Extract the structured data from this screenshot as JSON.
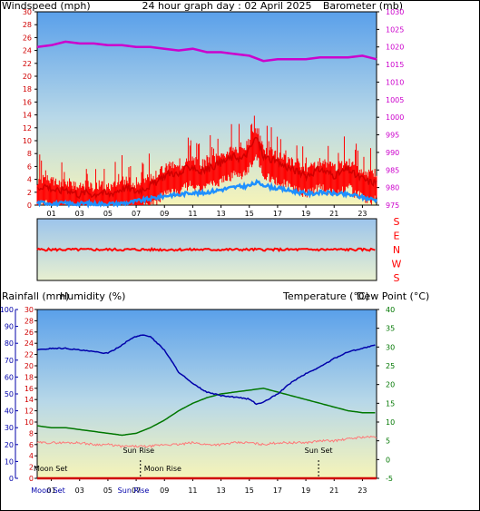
{
  "colors": {
    "windspeed": "#d00000",
    "gust": "#ff0000",
    "avg_wind": "#1e90ff",
    "barometer": "#cc00cc",
    "direction": "#ff0000",
    "rainfall": "#d00000",
    "humidity": "#0000aa",
    "temperature": "#007700",
    "dewpoint": "#ff7777",
    "temp_label": "#007700",
    "dew_label": "#ff6666",
    "border": "#000000"
  },
  "charts": {
    "top": {
      "title": "24 hour graph day : 02 April 2025",
      "left_label": "Windspeed (mph)",
      "right_label": "Barometer (mb)"
    },
    "direction": {
      "letters": [
        "S",
        "E",
        "N",
        "W",
        "S"
      ]
    },
    "bottom": {
      "left_label": "Rainfall (mm)",
      "left_label2": "Humidity (%)",
      "right_label": "Temperature (°C)",
      "right_label2": "Dew Point (°C)"
    }
  },
  "chart_data": [
    {
      "type": "line",
      "title": "24 hour graph day : 02 April 2025",
      "ylabel": "Windspeed (mph)",
      "y2label": "Barometer (mb)",
      "x_ticks": [
        "01",
        "03",
        "05",
        "07",
        "09",
        "11",
        "13",
        "15",
        "17",
        "19",
        "21",
        "23"
      ],
      "xlim": [
        0,
        24
      ],
      "ylim": [
        0,
        30
      ],
      "y_ticks": [
        0,
        2,
        4,
        6,
        8,
        10,
        12,
        14,
        16,
        18,
        20,
        22,
        24,
        26,
        28,
        30
      ],
      "y_tick_labels": [
        "0",
        "2",
        "4",
        "6",
        "8",
        "10",
        "12",
        "14",
        "16",
        "18",
        "20",
        "22",
        "24",
        "26",
        "28",
        "30"
      ],
      "y2lim": [
        975,
        1030
      ],
      "y2_ticks": [
        975,
        980,
        985,
        990,
        995,
        1000,
        1005,
        1010,
        1015,
        1020,
        1025,
        1030
      ],
      "y2_tick_labels": [
        "975",
        "980",
        "985",
        "990",
        "995",
        "1000",
        "1005",
        "1010",
        "1015",
        "1020",
        "1025",
        "1030"
      ],
      "series": [
        {
          "name": "Windspeed",
          "axis": "left",
          "x": [
            0,
            0.5,
            1,
            1.5,
            2,
            2.5,
            3,
            3.5,
            4,
            4.5,
            5,
            5.5,
            6,
            6.5,
            7,
            7.5,
            8,
            8.5,
            9,
            9.5,
            10,
            10.5,
            11,
            11.5,
            12,
            12.5,
            13,
            13.5,
            14,
            14.5,
            15,
            15.5,
            16,
            16.5,
            17,
            17.5,
            18,
            18.5,
            19,
            19.5,
            20,
            20.5,
            21,
            21.5,
            22,
            22.5,
            23,
            23.5,
            24
          ],
          "values": [
            3,
            3.5,
            3,
            2.5,
            3,
            2.5,
            2,
            2.5,
            2,
            2.5,
            2,
            2.5,
            3,
            3,
            2.5,
            3,
            3.5,
            4,
            5,
            5.5,
            5,
            6,
            6.5,
            5.5,
            6,
            6.5,
            7,
            7.5,
            8,
            7.5,
            9,
            11,
            8,
            7.5,
            7,
            6.5,
            6,
            5.5,
            5,
            5.5,
            6,
            5.5,
            5,
            5.5,
            6,
            5,
            4.5,
            4,
            4
          ]
        },
        {
          "name": "Average Windspeed",
          "axis": "left",
          "x": [
            0,
            0.5,
            1,
            1.5,
            2,
            2.5,
            3,
            3.5,
            4,
            4.5,
            5,
            5.5,
            6,
            6.5,
            7,
            7.5,
            8,
            8.5,
            9,
            9.5,
            10,
            10.5,
            11,
            11.5,
            12,
            12.5,
            13,
            13.5,
            14,
            14.5,
            15,
            15.5,
            16,
            16.5,
            17,
            17.5,
            18,
            18.5,
            19,
            19.5,
            20,
            20.5,
            21,
            21.5,
            22,
            22.5,
            23,
            23.5,
            24
          ],
          "values": [
            0.3,
            0.4,
            0.3,
            0.2,
            0.3,
            0.2,
            0.2,
            0.3,
            0.2,
            0.2,
            0.2,
            0.2,
            0.3,
            0.4,
            0.6,
            0.8,
            1,
            1.2,
            1.4,
            1.6,
            1.6,
            1.8,
            2,
            1.8,
            2,
            2.2,
            2.4,
            2.6,
            2.8,
            2.9,
            3,
            3.5,
            3.2,
            2.8,
            2.6,
            2.4,
            2.2,
            2,
            1.8,
            1.8,
            2,
            1.9,
            1.8,
            1.7,
            1.6,
            1.5,
            1.2,
            1,
            0.8
          ]
        },
        {
          "name": "Barometer",
          "axis": "right",
          "x": [
            0,
            1,
            2,
            3,
            4,
            5,
            6,
            7,
            8,
            9,
            10,
            11,
            12,
            13,
            14,
            15,
            16,
            17,
            18,
            19,
            20,
            21,
            22,
            23,
            23.5,
            24
          ],
          "values": [
            1020,
            1020.5,
            1021.5,
            1021,
            1021,
            1020.5,
            1020.5,
            1020,
            1020,
            1019.5,
            1019,
            1019.5,
            1018.5,
            1018.5,
            1018,
            1017.5,
            1016,
            1016.5,
            1016.5,
            1016.5,
            1017,
            1017,
            1017,
            1017.5,
            1017,
            1016.5
          ]
        }
      ]
    },
    {
      "type": "line",
      "ylabel": "",
      "y_labels": [
        "S",
        "E",
        "N",
        "W",
        "S"
      ],
      "xlim": [
        0,
        24
      ],
      "ylim": [
        0,
        360
      ],
      "series": [
        {
          "name": "Wind Direction",
          "x": [
            0,
            2,
            4,
            6,
            8,
            10,
            12,
            14,
            16,
            18,
            20,
            22,
            24
          ],
          "values": [
            180,
            180,
            180,
            180,
            180,
            180,
            180,
            180,
            180,
            180,
            180,
            180,
            180
          ]
        }
      ]
    },
    {
      "type": "line",
      "ylabel": "Rainfall (mm)",
      "y2label": "Temperature (°C)",
      "x_ticks": [
        "01",
        "03",
        "05",
        "07",
        "09",
        "11",
        "13",
        "15",
        "17",
        "19",
        "21",
        "23"
      ],
      "xlim": [
        0,
        24
      ],
      "ylim": [
        0,
        30
      ],
      "y_ticks": [
        0,
        2,
        4,
        6,
        8,
        10,
        12,
        14,
        16,
        18,
        20,
        22,
        24,
        26,
        28,
        30
      ],
      "y_tick_labels": [
        "0",
        "2",
        "4",
        "6",
        "8",
        "10",
        "12",
        "14",
        "16",
        "18",
        "20",
        "22",
        "24",
        "26",
        "28",
        "30"
      ],
      "humidity_ticks": [
        0,
        10,
        20,
        30,
        40,
        50,
        60,
        70,
        80,
        90,
        100
      ],
      "humidity_tick_labels": [
        "0",
        "10",
        "20",
        "30",
        "40",
        "50",
        "60",
        "70",
        "80",
        "90",
        "100"
      ],
      "y2lim": [
        -5,
        40
      ],
      "y2_ticks": [
        -5,
        0,
        5,
        10,
        15,
        20,
        25,
        30,
        35,
        40
      ],
      "y2_tick_labels": [
        "-5",
        "0",
        "5",
        "10",
        "15",
        "20",
        "25",
        "30",
        "35",
        "40"
      ],
      "annotations": [
        "Moon Set",
        "Moon Rise",
        "Sun Rise",
        "Sun Set"
      ],
      "x_event_labels": [
        "Moon Set",
        "Sun Rise"
      ],
      "series": [
        {
          "name": "Rainfall",
          "axis": "left",
          "x": [
            0,
            24
          ],
          "values": [
            0,
            0
          ]
        },
        {
          "name": "Humidity",
          "axis": "humidity",
          "x": [
            0,
            1,
            2,
            3,
            4,
            5,
            6,
            6.5,
            7,
            7.5,
            8,
            9,
            10,
            11,
            12,
            13,
            14,
            15,
            15.5,
            16,
            17,
            18,
            19,
            20,
            21,
            22,
            23,
            24
          ],
          "values": [
            76,
            77,
            77,
            76,
            75,
            74,
            79,
            82,
            84,
            85,
            84,
            76,
            63,
            56,
            51,
            49,
            48,
            47,
            44,
            45,
            50,
            57,
            62,
            66,
            71,
            75,
            77,
            79
          ]
        },
        {
          "name": "Temperature",
          "axis": "right",
          "x": [
            0,
            1,
            2,
            3,
            4,
            5,
            6,
            7,
            8,
            9,
            10,
            11,
            12,
            13,
            14,
            15,
            16,
            17,
            18,
            19,
            20,
            21,
            22,
            23,
            24
          ],
          "values": [
            9,
            8.5,
            8.5,
            8,
            7.5,
            7,
            6.5,
            7,
            8.5,
            10.5,
            13,
            15,
            16.5,
            17.5,
            18,
            18.5,
            19,
            18,
            17,
            16,
            15,
            14,
            13,
            12.5,
            12.5
          ]
        },
        {
          "name": "Dew Point",
          "axis": "right",
          "x": [
            0,
            1,
            2,
            3,
            4,
            5,
            6,
            7,
            8,
            9,
            10,
            11,
            12,
            13,
            14,
            15,
            16,
            17,
            18,
            19,
            20,
            21,
            22,
            23,
            24
          ],
          "values": [
            4.5,
            4.5,
            4.5,
            4.5,
            4,
            4,
            3.5,
            3.5,
            3.5,
            4,
            4,
            4.5,
            4,
            4,
            4.5,
            4.5,
            4,
            4.5,
            4.5,
            4.5,
            5,
            5,
            5.5,
            6,
            6
          ]
        }
      ]
    }
  ]
}
